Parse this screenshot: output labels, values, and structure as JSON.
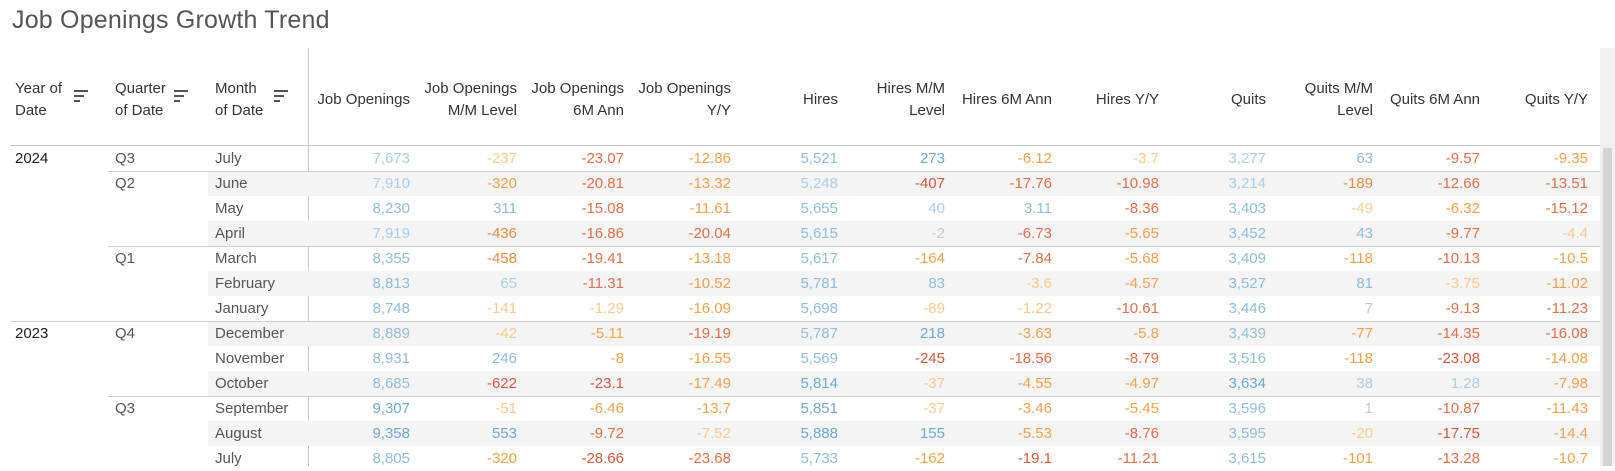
{
  "title": "Job Openings Growth Trend",
  "row_headers": [
    {
      "label": "Year of Date",
      "lines": [
        "Year of",
        "Date"
      ]
    },
    {
      "label": "Quarter of Date",
      "lines": [
        "Quarter",
        "of Date"
      ]
    },
    {
      "label": "Month of Date",
      "lines": [
        "Month",
        "of Date"
      ]
    }
  ],
  "columns": [
    {
      "lines": [
        "Job Openings"
      ]
    },
    {
      "lines": [
        "Job Openings",
        "M/M Level"
      ]
    },
    {
      "lines": [
        "Job Openings",
        "6M Ann"
      ]
    },
    {
      "lines": [
        "Job Openings",
        "Y/Y"
      ]
    },
    {
      "lines": [
        "Hires"
      ]
    },
    {
      "lines": [
        "Hires M/M",
        "Level"
      ]
    },
    {
      "lines": [
        "Hires 6M Ann"
      ]
    },
    {
      "lines": [
        "Hires Y/Y"
      ]
    },
    {
      "lines": [
        "Quits"
      ]
    },
    {
      "lines": [
        "Quits M/M",
        "Level"
      ]
    },
    {
      "lines": [
        "Quits 6M Ann"
      ]
    },
    {
      "lines": [
        "Quits Y/Y"
      ]
    }
  ],
  "colors": {
    "blue_light": "#a9cfe8",
    "blue_mid": "#8fbddb",
    "blue_dark": "#6fa8d1",
    "orange_light": "#fbc98e",
    "orange_mid": "#f5a04f",
    "orange_dark": "#ee8a45",
    "red_mid": "#e2704a",
    "red_dark": "#d35a3e",
    "gray": "#c9c9c9"
  },
  "rows": [
    {
      "year": "2024",
      "quarter": "Q3",
      "month": "July",
      "values": [
        "7,673",
        "-237",
        "-23.07",
        "-12.86",
        "5,521",
        "273",
        "-6.12",
        "-3.7",
        "3,277",
        "63",
        "-9.57",
        "-9.35"
      ],
      "tones": [
        "blue_light",
        "orange_light",
        "red_mid",
        "orange_mid",
        "blue_mid",
        "blue_dark",
        "orange_mid",
        "orange_light",
        "blue_light",
        "blue_mid",
        "red_mid",
        "orange_mid"
      ]
    },
    {
      "year": "",
      "quarter": "Q2",
      "month": "June",
      "values": [
        "7,910",
        "-320",
        "-20.81",
        "-13.32",
        "5,248",
        "-407",
        "-17.76",
        "-10.98",
        "3,214",
        "-189",
        "-12.66",
        "-13.51"
      ],
      "tones": [
        "blue_light",
        "orange_mid",
        "red_mid",
        "orange_mid",
        "blue_light",
        "red_dark",
        "red_mid",
        "red_mid",
        "blue_light",
        "orange_dark",
        "red_mid",
        "red_mid"
      ]
    },
    {
      "year": "",
      "quarter": "",
      "month": "May",
      "values": [
        "8,230",
        "311",
        "-15.08",
        "-11.61",
        "5,655",
        "40",
        "3.11",
        "-8.36",
        "3,403",
        "-49",
        "-6.32",
        "-15.12"
      ],
      "tones": [
        "blue_mid",
        "blue_mid",
        "red_mid",
        "orange_mid",
        "blue_mid",
        "blue_light",
        "blue_mid",
        "red_mid",
        "blue_mid",
        "orange_light",
        "orange_mid",
        "red_mid"
      ]
    },
    {
      "year": "",
      "quarter": "",
      "month": "April",
      "values": [
        "7,919",
        "-436",
        "-16.86",
        "-20.04",
        "5,615",
        "-2",
        "-6.73",
        "-5.65",
        "3,452",
        "43",
        "-9.77",
        "-4.4"
      ],
      "tones": [
        "blue_light",
        "orange_dark",
        "red_mid",
        "red_mid",
        "blue_mid",
        "gray",
        "red_mid",
        "orange_mid",
        "blue_mid",
        "blue_mid",
        "red_mid",
        "orange_light"
      ]
    },
    {
      "year": "",
      "quarter": "Q1",
      "month": "March",
      "values": [
        "8,355",
        "-458",
        "-19.41",
        "-13.18",
        "5,617",
        "-164",
        "-7.84",
        "-5.68",
        "3,409",
        "-118",
        "-10.13",
        "-10.5"
      ],
      "tones": [
        "blue_mid",
        "orange_dark",
        "red_mid",
        "orange_mid",
        "blue_mid",
        "orange_mid",
        "red_mid",
        "orange_mid",
        "blue_mid",
        "orange_mid",
        "red_mid",
        "orange_mid"
      ]
    },
    {
      "year": "",
      "quarter": "",
      "month": "February",
      "values": [
        "8,813",
        "65",
        "-11.31",
        "-10.52",
        "5,781",
        "83",
        "-3.6",
        "-4.57",
        "3,527",
        "81",
        "-3.75",
        "-11.02"
      ],
      "tones": [
        "blue_mid",
        "blue_light",
        "red_mid",
        "orange_mid",
        "blue_mid",
        "blue_mid",
        "orange_light",
        "orange_mid",
        "blue_mid",
        "blue_mid",
        "orange_light",
        "orange_mid"
      ]
    },
    {
      "year": "",
      "quarter": "",
      "month": "January",
      "values": [
        "8,748",
        "-141",
        "-1.29",
        "-16.09",
        "5,698",
        "-89",
        "-1.22",
        "-10.61",
        "3,446",
        "7",
        "-9.13",
        "-11.23"
      ],
      "tones": [
        "blue_mid",
        "orange_light",
        "orange_light",
        "orange_mid",
        "blue_mid",
        "orange_light",
        "orange_light",
        "red_mid",
        "blue_mid",
        "gray",
        "red_mid",
        "red_mid"
      ]
    },
    {
      "year": "2023",
      "quarter": "Q4",
      "month": "December",
      "values": [
        "8,889",
        "-42",
        "-5.11",
        "-19.19",
        "5,787",
        "218",
        "-3.63",
        "-5.8",
        "3,439",
        "-77",
        "-14.35",
        "-16.08"
      ],
      "tones": [
        "blue_mid",
        "orange_light",
        "orange_mid",
        "red_mid",
        "blue_mid",
        "blue_dark",
        "orange_mid",
        "orange_mid",
        "blue_mid",
        "orange_mid",
        "red_mid",
        "red_mid"
      ]
    },
    {
      "year": "",
      "quarter": "",
      "month": "November",
      "values": [
        "8,931",
        "246",
        "-8",
        "-16.55",
        "5,569",
        "-245",
        "-18.56",
        "-8.79",
        "3,516",
        "-118",
        "-23.08",
        "-14.08"
      ],
      "tones": [
        "blue_mid",
        "blue_mid",
        "orange_mid",
        "orange_mid",
        "blue_mid",
        "red_dark",
        "red_mid",
        "red_mid",
        "blue_mid",
        "orange_mid",
        "red_dark",
        "orange_mid"
      ]
    },
    {
      "year": "",
      "quarter": "",
      "month": "October",
      "values": [
        "8,685",
        "-622",
        "-23.1",
        "-17.49",
        "5,814",
        "-37",
        "-4.55",
        "-4.97",
        "3,634",
        "38",
        "1.28",
        "-7.98"
      ],
      "tones": [
        "blue_mid",
        "red_dark",
        "red_dark",
        "orange_mid",
        "blue_dark",
        "orange_light",
        "orange_mid",
        "orange_mid",
        "blue_dark",
        "blue_light",
        "blue_light",
        "orange_mid"
      ]
    },
    {
      "year": "",
      "quarter": "Q3",
      "month": "September",
      "values": [
        "9,307",
        "-51",
        "-6.46",
        "-13.7",
        "5,851",
        "-37",
        "-3.46",
        "-5.45",
        "3,596",
        "1",
        "-10.87",
        "-11.43"
      ],
      "tones": [
        "blue_dark",
        "orange_light",
        "orange_mid",
        "orange_mid",
        "blue_dark",
        "orange_light",
        "orange_mid",
        "orange_mid",
        "blue_mid",
        "gray",
        "red_mid",
        "orange_mid"
      ]
    },
    {
      "year": "",
      "quarter": "",
      "month": "August",
      "values": [
        "9,358",
        "553",
        "-9.72",
        "-7.52",
        "5,888",
        "155",
        "-5.53",
        "-8.76",
        "3,595",
        "-20",
        "-17.75",
        "-14.4"
      ],
      "tones": [
        "blue_dark",
        "blue_dark",
        "red_mid",
        "orange_light",
        "blue_dark",
        "blue_dark",
        "orange_mid",
        "red_mid",
        "blue_mid",
        "orange_light",
        "red_dark",
        "orange_mid"
      ]
    },
    {
      "year": "",
      "quarter": "",
      "month": "July",
      "values": [
        "8,805",
        "-320",
        "-28.66",
        "-23.68",
        "5,733",
        "-162",
        "-19.1",
        "-11.21",
        "3,615",
        "-101",
        "-13.28",
        "-10.7"
      ],
      "tones": [
        "blue_mid",
        "orange_mid",
        "red_dark",
        "red_mid",
        "blue_mid",
        "orange_mid",
        "red_dark",
        "red_mid",
        "blue_mid",
        "orange_mid",
        "red_mid",
        "orange_mid"
      ]
    }
  ]
}
